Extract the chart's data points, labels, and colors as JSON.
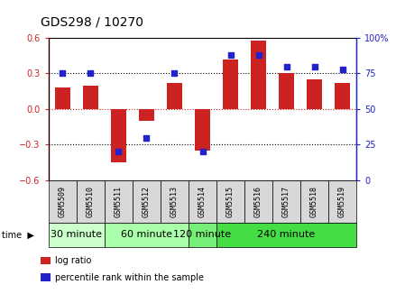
{
  "title": "GDS298 / 10270",
  "samples": [
    "GSM5509",
    "GSM5510",
    "GSM5511",
    "GSM5512",
    "GSM5513",
    "GSM5514",
    "GSM5515",
    "GSM5516",
    "GSM5517",
    "GSM5518",
    "GSM5519"
  ],
  "log_ratio": [
    0.18,
    0.2,
    -0.45,
    -0.1,
    0.22,
    -0.35,
    0.42,
    0.58,
    0.3,
    0.25,
    0.22
  ],
  "percentile": [
    75,
    75,
    20,
    30,
    75,
    20,
    88,
    88,
    80,
    80,
    78
  ],
  "groups": [
    {
      "label": "30 minute",
      "start": 0,
      "end": 1,
      "color": "#ccffcc"
    },
    {
      "label": "60 minute",
      "start": 2,
      "end": 4,
      "color": "#aaffaa"
    },
    {
      "label": "120 minute",
      "start": 5,
      "end": 5,
      "color": "#77ee77"
    },
    {
      "label": "240 minute",
      "start": 6,
      "end": 10,
      "color": "#44dd44"
    }
  ],
  "bar_color": "#cc2222",
  "dot_color": "#2222cc",
  "ylim": [
    -0.6,
    0.6
  ],
  "y2lim": [
    0,
    100
  ],
  "yticks": [
    -0.6,
    -0.3,
    0.0,
    0.3,
    0.6
  ],
  "y2ticks": [
    0,
    25,
    50,
    75,
    100
  ],
  "hlines_dotted": [
    -0.3,
    0.3
  ],
  "hline_zero_color": "#cc2222",
  "bg_color": "#d8d8d8",
  "bar_width": 0.55,
  "label_fontsize": 7,
  "group_fontsize": 8
}
